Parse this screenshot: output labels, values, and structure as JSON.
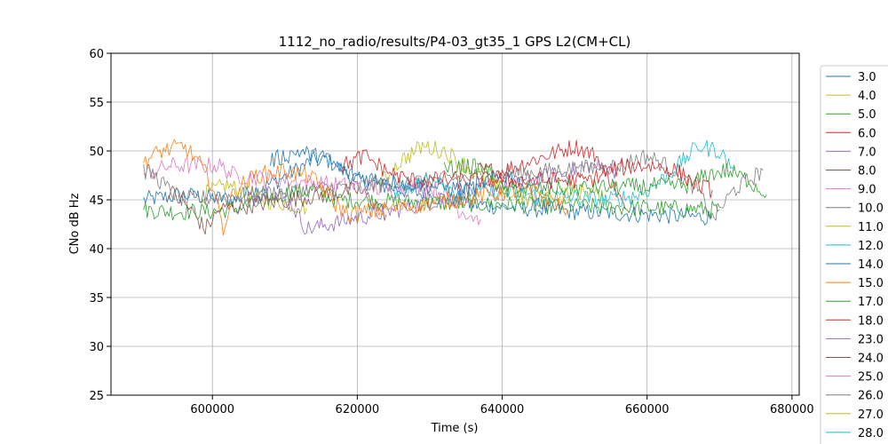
{
  "chart_data": {
    "type": "line",
    "title": "1112_no_radio/results/P4-03_gt35_1 GPS L2(CM+CL)",
    "xlabel": "Time (s)",
    "ylabel": "CNo dB Hz",
    "xlim": [
      586000,
      681000
    ],
    "ylim": [
      25,
      60
    ],
    "xticks": [
      600000,
      620000,
      640000,
      660000,
      680000
    ],
    "xtick_labels": [
      "600000",
      "620000",
      "640000",
      "660000",
      "680000"
    ],
    "yticks": [
      25,
      30,
      35,
      40,
      45,
      50,
      55,
      60
    ],
    "ytick_labels": [
      "25",
      "30",
      "35",
      "40",
      "45",
      "50",
      "55",
      "60"
    ],
    "grid": true,
    "legend_position": "right, outside axes",
    "series": [
      {
        "name": "3.0",
        "color": "#1f77b4",
        "points": [
          [
            590500,
            45.0
          ],
          [
            596000,
            45.5
          ],
          [
            603000,
            45.0
          ],
          [
            609000,
            47.0
          ],
          [
            615000,
            49.5
          ],
          [
            620000,
            47.0
          ],
          [
            636000,
            44.5
          ],
          [
            650000,
            43.8
          ],
          [
            669000,
            43.2
          ]
        ]
      },
      {
        "name": "4.0",
        "color": "#bcbd22",
        "points": [
          [
            598500,
            45.5
          ],
          [
            602000,
            46.5
          ],
          [
            607000,
            45.0
          ],
          [
            611000,
            44.5
          ],
          [
            613000,
            44.2
          ]
        ]
      },
      {
        "name": "5.0",
        "color": "#2ca02c",
        "points": [
          [
            590500,
            44.0
          ],
          [
            594000,
            43.8
          ],
          [
            600000,
            43.8
          ],
          [
            606000,
            44.5
          ],
          [
            609000,
            45.5
          ],
          [
            614000,
            46.0
          ],
          [
            617000,
            45.0
          ],
          [
            640000,
            44.5
          ],
          [
            670000,
            44.0
          ]
        ]
      },
      {
        "name": "6.0",
        "color": "#d62728",
        "points": [
          [
            636500,
            48.0
          ],
          [
            640000,
            48.0
          ],
          [
            644000,
            49.0
          ],
          [
            648000,
            50.0
          ],
          [
            650000,
            50.5
          ],
          [
            653000,
            49.5
          ],
          [
            655000,
            47.0
          ],
          [
            657000,
            44.0
          ]
        ]
      },
      {
        "name": "7.0",
        "color": "#9467bd",
        "points": [
          [
            605000,
            45.0
          ],
          [
            608000,
            46.0
          ],
          [
            611000,
            44.5
          ],
          [
            613000,
            42.0
          ],
          [
            647000,
            47.5
          ],
          [
            652000,
            48.5
          ],
          [
            656000,
            48.0
          ]
        ]
      },
      {
        "name": "8.0",
        "color": "#8c564b",
        "points": [
          [
            594000,
            46.0
          ],
          [
            597000,
            44.0
          ],
          [
            599000,
            42.0
          ],
          [
            601000,
            44.0
          ],
          [
            620000,
            46.0
          ],
          [
            622000,
            45.0
          ],
          [
            624000,
            43.5
          ]
        ]
      },
      {
        "name": "9.0",
        "color": "#e377c2",
        "points": [
          [
            590500,
            47.5
          ],
          [
            594000,
            48.5
          ],
          [
            598000,
            48.5
          ],
          [
            601000,
            48.5
          ],
          [
            603000,
            47.5
          ],
          [
            625000,
            46.0
          ],
          [
            628000,
            46.5
          ],
          [
            631000,
            46.0
          ],
          [
            634000,
            44.0
          ],
          [
            637000,
            43.0
          ]
        ]
      },
      {
        "name": "10.0",
        "color": "#7f7f7f",
        "points": [
          [
            590500,
            48.0
          ],
          [
            592000,
            47.5
          ],
          [
            594000,
            46.0
          ],
          [
            596000,
            45.0
          ],
          [
            656000,
            48.5
          ],
          [
            660000,
            49.5
          ],
          [
            664000,
            48.0
          ],
          [
            667000,
            46.0
          ],
          [
            669000,
            43.0
          ],
          [
            672000,
            46.0
          ],
          [
            676000,
            48.0
          ]
        ]
      },
      {
        "name": "11.0",
        "color": "#bcbd22",
        "points": [
          [
            623000,
            46.5
          ],
          [
            626000,
            49.0
          ],
          [
            629000,
            50.5
          ],
          [
            632000,
            50.0
          ],
          [
            635000,
            48.5
          ],
          [
            638000,
            47.0
          ],
          [
            641000,
            45.5
          ],
          [
            644000,
            45.0
          ],
          [
            648000,
            45.5
          ],
          [
            652000,
            46.0
          ],
          [
            654000,
            45.0
          ]
        ]
      },
      {
        "name": "12.0",
        "color": "#17becf",
        "points": [
          [
            625000,
            46.0
          ],
          [
            628000,
            46.5
          ],
          [
            631000,
            47.5
          ],
          [
            633000,
            46.0
          ],
          [
            655000,
            45.0
          ],
          [
            659000,
            45.5
          ],
          [
            662000,
            47.0
          ],
          [
            665000,
            49.0
          ],
          [
            667000,
            50.5
          ],
          [
            670000,
            50.0
          ],
          [
            672000,
            48.0
          ]
        ]
      },
      {
        "name": "14.0",
        "color": "#1f77b4",
        "points": [
          [
            608000,
            49.0
          ],
          [
            612000,
            50.0
          ],
          [
            616000,
            49.0
          ],
          [
            619000,
            47.5
          ],
          [
            635000,
            46.0
          ],
          [
            638000,
            47.0
          ],
          [
            641000,
            47.5
          ],
          [
            644000,
            46.0
          ],
          [
            646000,
            44.0
          ]
        ]
      },
      {
        "name": "15.0",
        "color": "#ff7f0e",
        "points": [
          [
            590500,
            49.0
          ],
          [
            593000,
            50.0
          ],
          [
            596000,
            50.5
          ],
          [
            598000,
            49.0
          ],
          [
            600000,
            46.5
          ],
          [
            601500,
            42.0
          ],
          [
            603000,
            46.0
          ],
          [
            606000,
            47.5
          ],
          [
            610000,
            48.0
          ],
          [
            613000,
            47.5
          ],
          [
            615000,
            46.5
          ],
          [
            617000,
            44.5
          ],
          [
            619000,
            43.5
          ],
          [
            643000,
            46.0
          ],
          [
            646000,
            45.5
          ],
          [
            649000,
            44.0
          ]
        ]
      },
      {
        "name": "17.0",
        "color": "#2ca02c",
        "points": [
          [
            632000,
            48.0
          ],
          [
            635000,
            48.5
          ],
          [
            638000,
            48.0
          ],
          [
            640000,
            46.0
          ],
          [
            666000,
            46.5
          ],
          [
            668000,
            47.5
          ],
          [
            671000,
            48.0
          ],
          [
            674000,
            47.0
          ],
          [
            676500,
            45.5
          ]
        ]
      },
      {
        "name": "18.0",
        "color": "#d62728",
        "points": [
          [
            618000,
            48.5
          ],
          [
            621000,
            49.5
          ],
          [
            624000,
            48.0
          ],
          [
            627000,
            47.0
          ],
          [
            652000,
            47.0
          ],
          [
            655000,
            48.0
          ],
          [
            658000,
            48.5
          ],
          [
            661000,
            48.5
          ],
          [
            664000,
            48.0
          ],
          [
            667000,
            46.5
          ],
          [
            669000,
            46.0
          ]
        ]
      }
    ]
  },
  "legend": {
    "entries": [
      {
        "label": "3.0",
        "color": "#1f77b4"
      },
      {
        "label": "4.0",
        "color": "#bcbd22"
      },
      {
        "label": "5.0",
        "color": "#2ca02c"
      },
      {
        "label": "6.0",
        "color": "#d62728"
      },
      {
        "label": "7.0",
        "color": "#9467bd"
      },
      {
        "label": "8.0",
        "color": "#8c564b"
      },
      {
        "label": "9.0",
        "color": "#e377c2"
      },
      {
        "label": "10.0",
        "color": "#7f7f7f"
      },
      {
        "label": "11.0",
        "color": "#bcbd22"
      },
      {
        "label": "12.0",
        "color": "#17becf"
      },
      {
        "label": "14.0",
        "color": "#1f77b4"
      },
      {
        "label": "15.0",
        "color": "#ff7f0e"
      },
      {
        "label": "17.0",
        "color": "#2ca02c"
      },
      {
        "label": "18.0",
        "color": "#d62728"
      },
      {
        "label": "23.0",
        "color": "#9467bd"
      },
      {
        "label": "24.0",
        "color": "#8c564b"
      },
      {
        "label": "25.0",
        "color": "#e377c2"
      },
      {
        "label": "26.0",
        "color": "#7f7f7f"
      },
      {
        "label": "27.0",
        "color": "#bcbd22"
      },
      {
        "label": "28.0",
        "color": "#17becf"
      }
    ]
  },
  "colors": {
    "grid": "#b0b0b0",
    "axes": "#000000",
    "legend_border": "#cccccc",
    "background": "#ffffff"
  }
}
